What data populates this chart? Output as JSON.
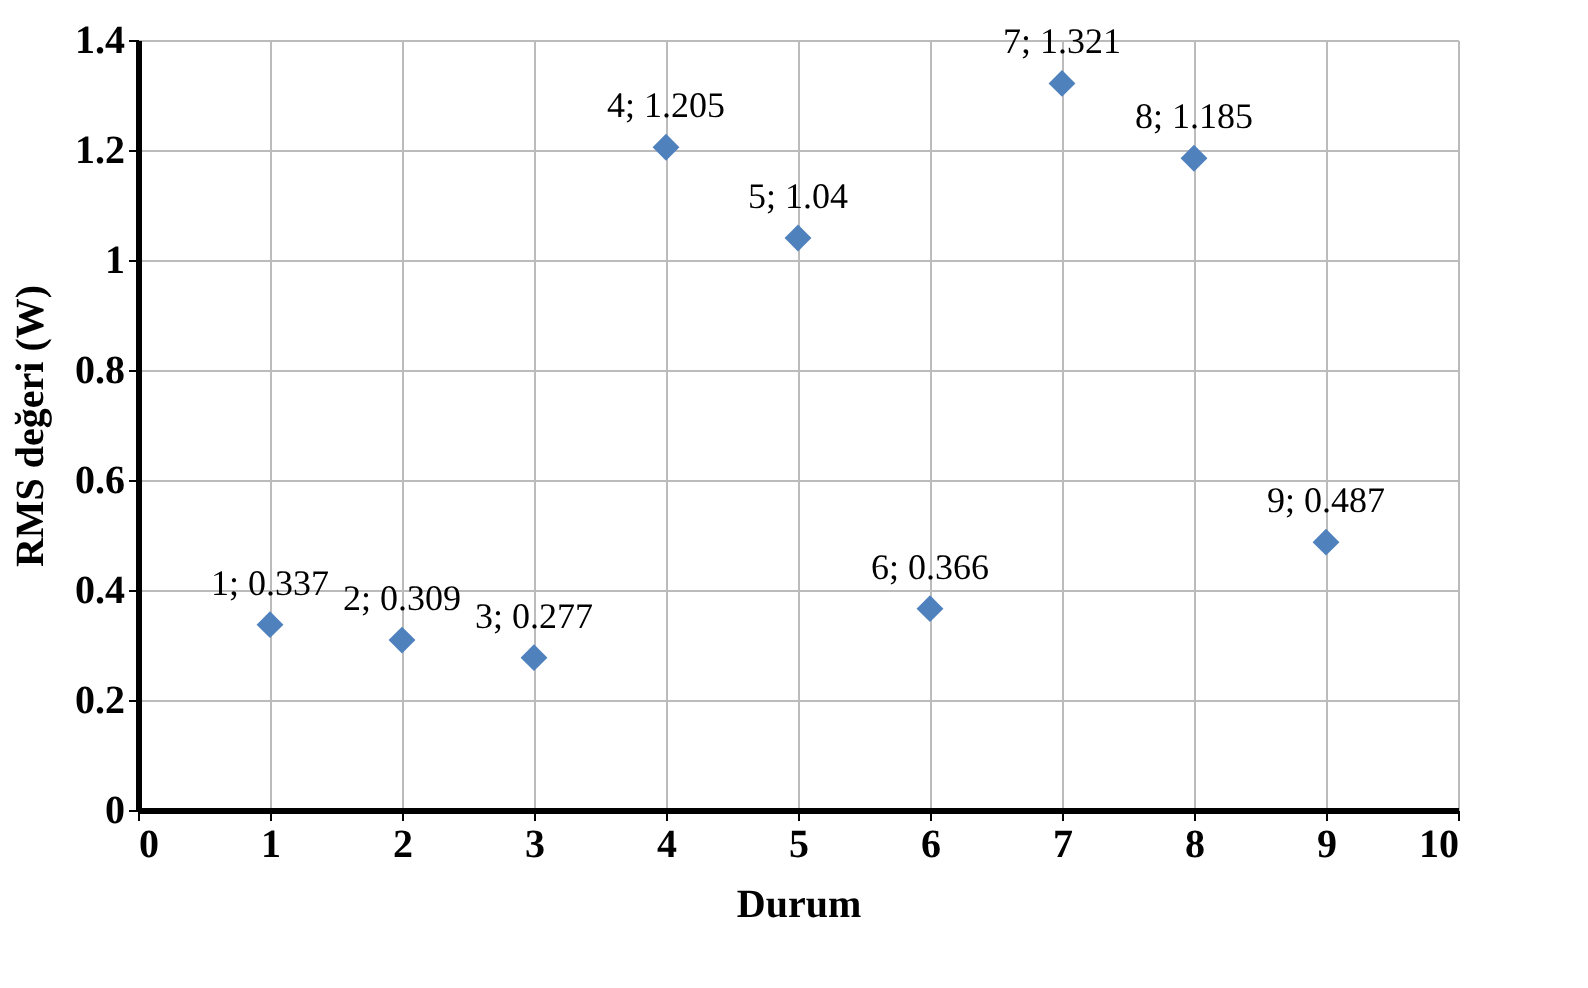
{
  "chart_data": {
    "type": "scatter",
    "xlabel": "Durum",
    "ylabel": "RMS değeri (W)",
    "x": [
      1,
      2,
      3,
      4,
      5,
      6,
      7,
      8,
      9
    ],
    "values": [
      0.337,
      0.309,
      0.277,
      1.205,
      1.04,
      0.366,
      1.321,
      1.185,
      0.487
    ],
    "value_labels": [
      "1; 0.337",
      "2; 0.309",
      "3; 0.277",
      "4; 1.205",
      "5; 1.04",
      "6; 0.366",
      "7; 1.321",
      "8; 1.185",
      "9; 0.487"
    ],
    "color": "#4f81bd",
    "marker": "diamond",
    "grid": true,
    "xlim": [
      0,
      10
    ],
    "xticks": [
      0,
      1,
      2,
      3,
      4,
      5,
      6,
      7,
      8,
      9,
      10
    ],
    "ylim": [
      0,
      1.4
    ],
    "yticks": [
      0,
      0.2,
      0.4,
      0.6,
      0.8,
      1,
      1.2,
      1.4
    ]
  }
}
